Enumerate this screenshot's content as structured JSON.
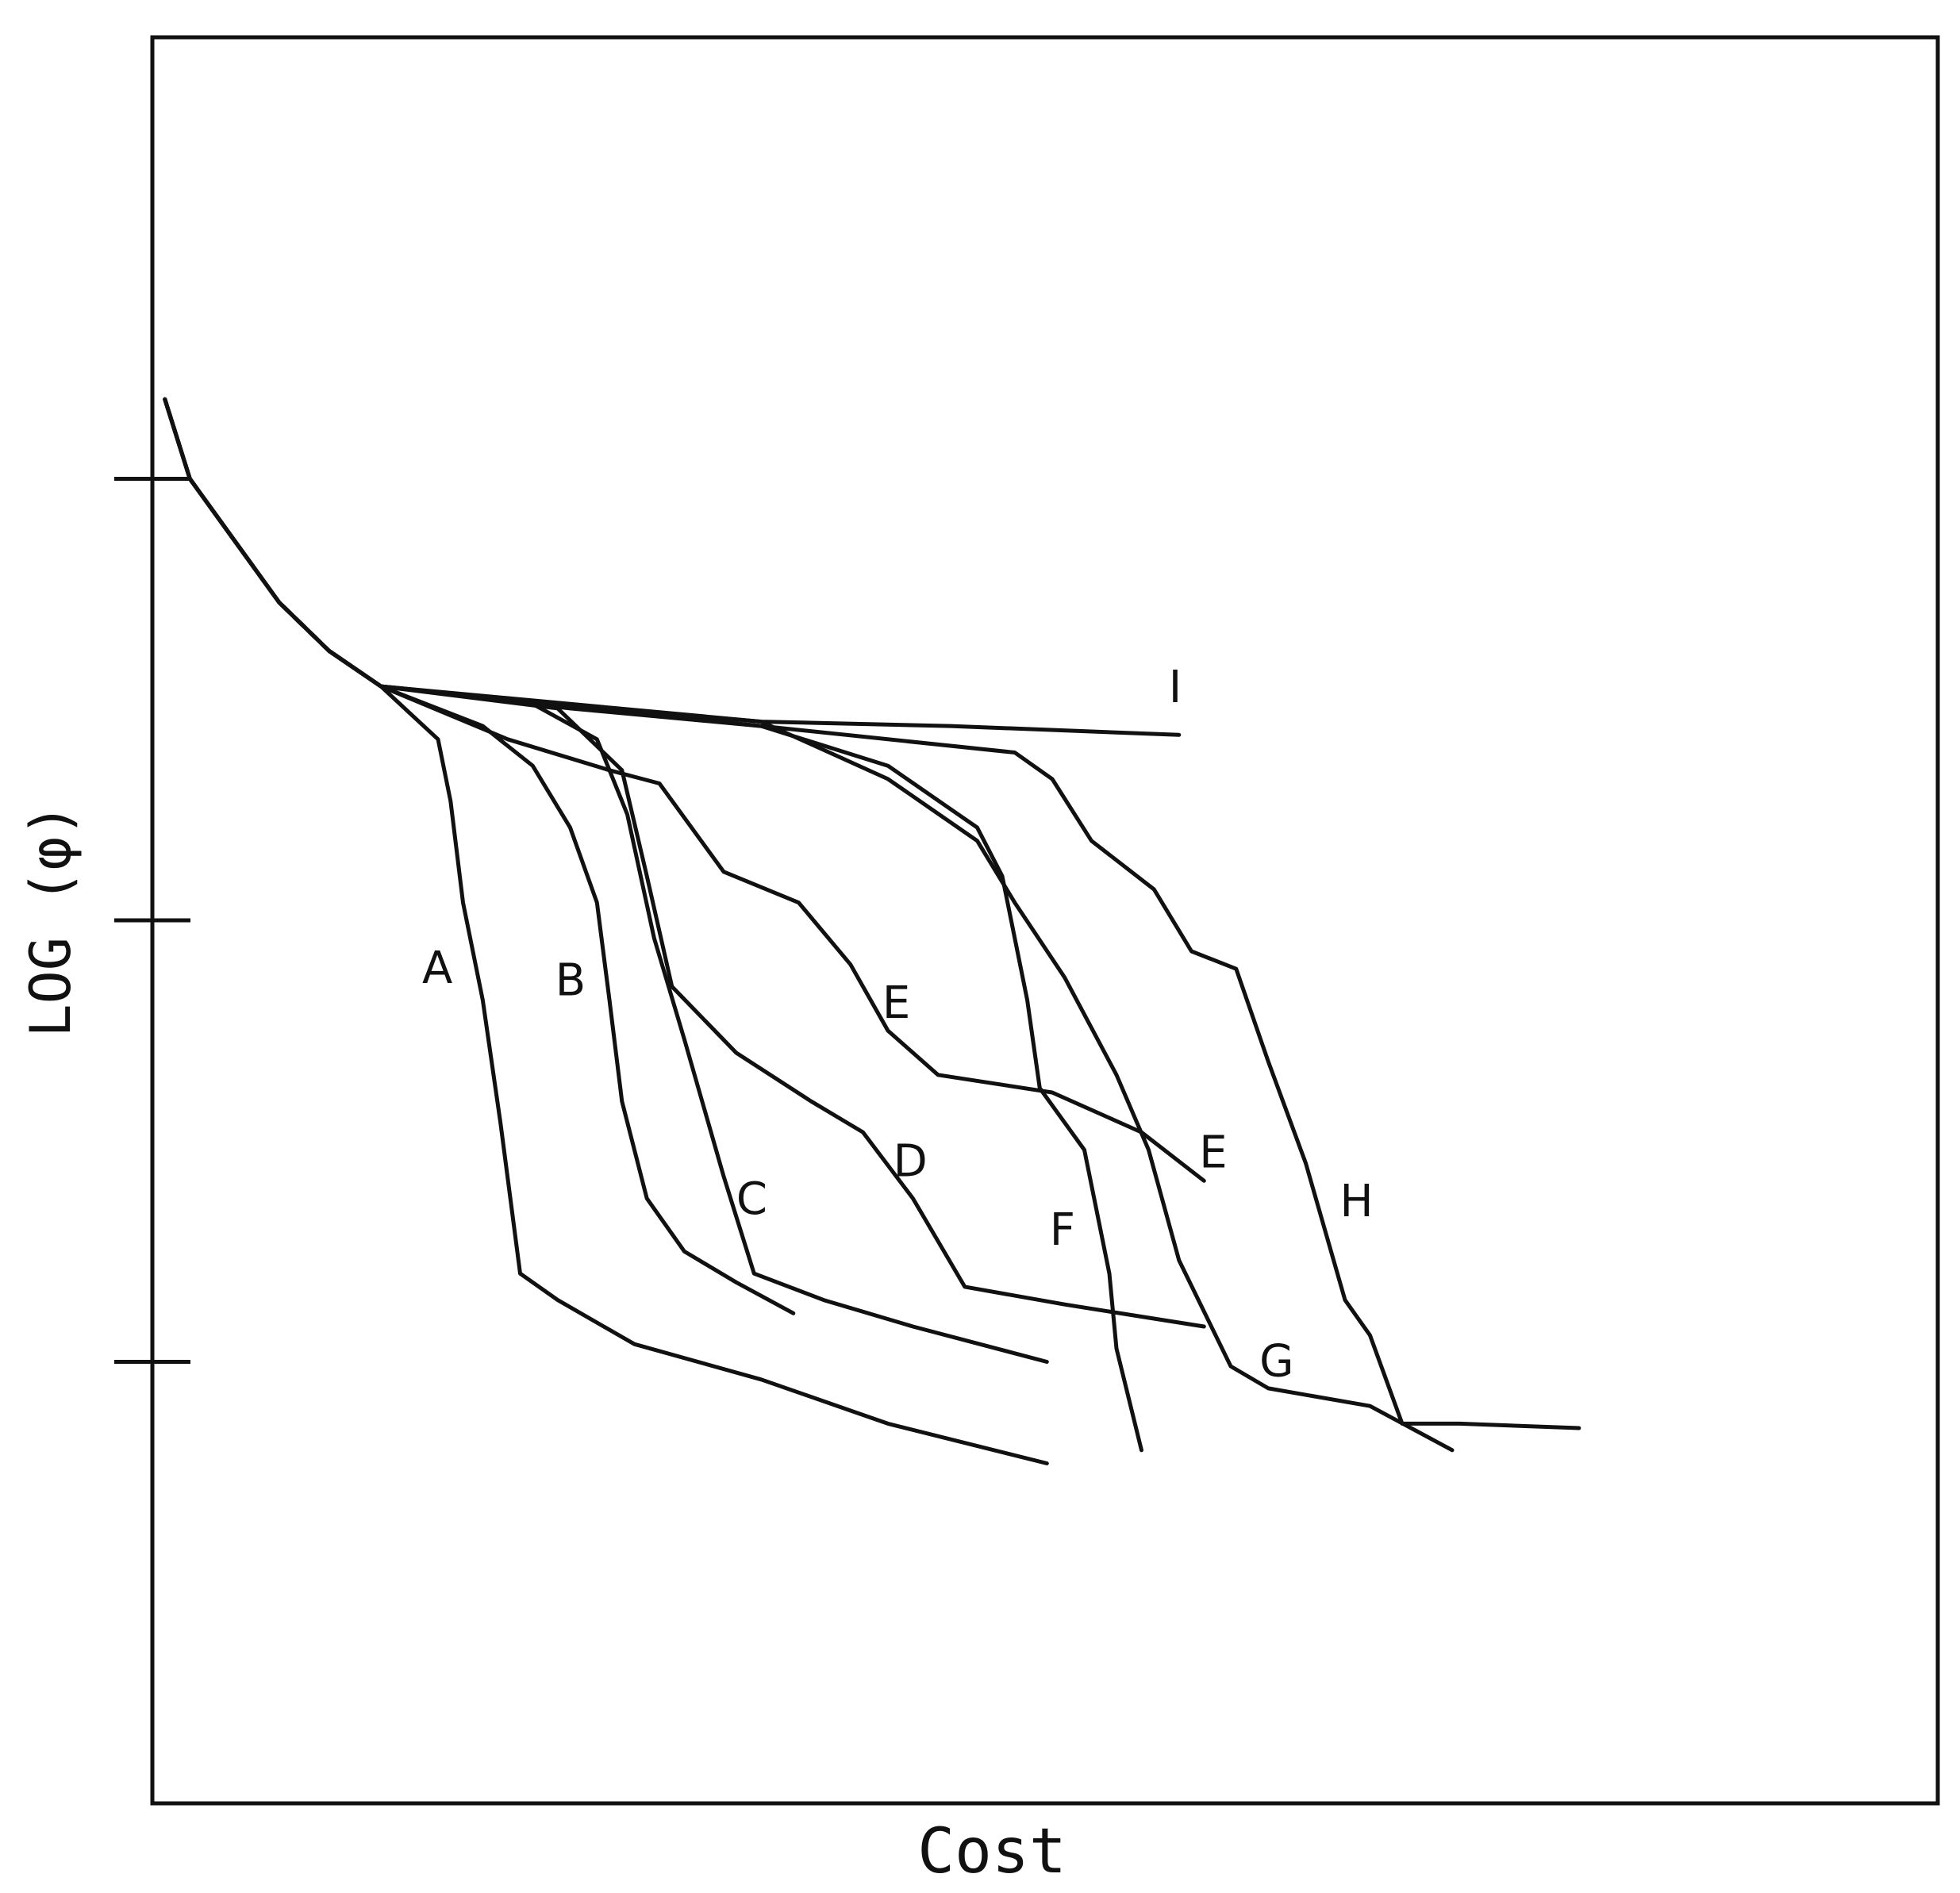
{
  "chart_data": {
    "type": "line",
    "x_label": "Cost",
    "y_label": "LOG (φ)",
    "xlim": [
      0,
      100
    ],
    "ylim": [
      0,
      4
    ],
    "yticks": [
      1,
      2,
      3
    ],
    "series": [
      {
        "name": "A",
        "color": "#111111",
        "x": [
          0.7,
          2.1,
          4.6,
          7.1,
          9.9,
          12.8,
          16.0,
          16.7,
          17.4,
          18.5,
          19.5,
          20.6,
          22.7,
          27.0,
          34.1,
          41.2,
          50.1
        ],
        "values": [
          3.18,
          3.0,
          2.86,
          2.72,
          2.61,
          2.53,
          2.41,
          2.27,
          2.04,
          1.82,
          1.54,
          1.2,
          1.14,
          1.04,
          0.96,
          0.86,
          0.77
        ]
      },
      {
        "name": "B",
        "color": "#111111",
        "x": [
          0.7,
          2.1,
          4.6,
          7.1,
          9.9,
          12.8,
          18.5,
          21.3,
          23.4,
          24.9,
          25.6,
          26.3,
          27.7,
          29.8,
          32.7,
          35.9
        ],
        "values": [
          3.18,
          3.0,
          2.86,
          2.72,
          2.61,
          2.53,
          2.44,
          2.35,
          2.21,
          2.04,
          1.82,
          1.59,
          1.37,
          1.25,
          1.18,
          1.11
        ]
      },
      {
        "name": "C",
        "color": "#111111",
        "x": [
          0.7,
          2.1,
          4.6,
          7.1,
          9.9,
          12.8,
          21.3,
          24.9,
          26.6,
          28.1,
          29.8,
          32.0,
          33.7,
          37.6,
          42.6,
          50.1
        ],
        "values": [
          3.18,
          3.0,
          2.86,
          2.72,
          2.61,
          2.53,
          2.49,
          2.41,
          2.24,
          1.96,
          1.73,
          1.42,
          1.2,
          1.14,
          1.08,
          1.0
        ]
      },
      {
        "name": "D",
        "color": "#111111",
        "x": [
          0.7,
          2.1,
          4.6,
          7.1,
          9.9,
          12.8,
          22.7,
          26.3,
          27.7,
          29.1,
          32.7,
          36.9,
          39.8,
          42.6,
          45.5,
          51.1,
          58.9
        ],
        "values": [
          3.18,
          3.0,
          2.86,
          2.72,
          2.61,
          2.53,
          2.48,
          2.34,
          2.1,
          1.85,
          1.7,
          1.59,
          1.52,
          1.37,
          1.17,
          1.13,
          1.08
        ]
      },
      {
        "name": "E",
        "color": "#111111",
        "x": [
          0.7,
          2.1,
          4.6,
          7.1,
          9.9,
          12.8,
          19.9,
          25.6,
          28.4,
          32.0,
          36.2,
          39.1,
          41.2,
          44.0,
          50.4,
          55.4,
          58.9
        ],
        "values": [
          3.18,
          3.0,
          2.86,
          2.72,
          2.61,
          2.53,
          2.41,
          2.34,
          2.31,
          2.11,
          2.04,
          1.9,
          1.75,
          1.65,
          1.61,
          1.52,
          1.41
        ]
      },
      {
        "name": "F",
        "color": "#111111",
        "x": [
          0.7,
          2.1,
          4.6,
          7.1,
          9.9,
          12.8,
          23.4,
          34.1,
          41.2,
          46.2,
          47.6,
          49.0,
          49.7,
          52.2,
          53.6,
          54.0,
          55.4
        ],
        "values": [
          3.18,
          3.0,
          2.86,
          2.72,
          2.61,
          2.53,
          2.48,
          2.44,
          2.35,
          2.21,
          2.1,
          1.82,
          1.62,
          1.48,
          1.2,
          1.03,
          0.8
        ]
      },
      {
        "name": "G",
        "color": "#111111",
        "x": [
          0.7,
          2.1,
          4.6,
          7.1,
          9.9,
          12.8,
          23.4,
          34.1,
          41.2,
          46.2,
          48.3,
          51.1,
          54.0,
          55.8,
          57.5,
          60.4,
          62.5,
          68.2,
          72.8
        ],
        "values": [
          3.18,
          3.0,
          2.86,
          2.72,
          2.61,
          2.53,
          2.49,
          2.45,
          2.32,
          2.18,
          2.04,
          1.87,
          1.65,
          1.48,
          1.23,
          0.99,
          0.94,
          0.9,
          0.8
        ]
      },
      {
        "name": "H",
        "color": "#111111",
        "x": [
          0.7,
          2.1,
          4.6,
          7.1,
          9.9,
          12.8,
          34.1,
          48.3,
          50.4,
          52.6,
          56.1,
          58.2,
          60.7,
          62.5,
          64.6,
          66.8,
          68.2,
          70.0,
          73.2,
          79.9
        ],
        "values": [
          3.18,
          3.0,
          2.86,
          2.72,
          2.61,
          2.53,
          2.44,
          2.38,
          2.32,
          2.18,
          2.07,
          1.93,
          1.89,
          1.68,
          1.45,
          1.14,
          1.06,
          0.86,
          0.86,
          0.85
        ]
      },
      {
        "name": "I",
        "color": "#111111",
        "x": [
          0.7,
          2.1,
          4.6,
          7.1,
          9.9,
          12.8,
          22.7,
          34.1,
          44.7,
          57.5
        ],
        "values": [
          3.18,
          3.0,
          2.86,
          2.72,
          2.61,
          2.53,
          2.49,
          2.45,
          2.44,
          2.42
        ]
      }
    ]
  }
}
